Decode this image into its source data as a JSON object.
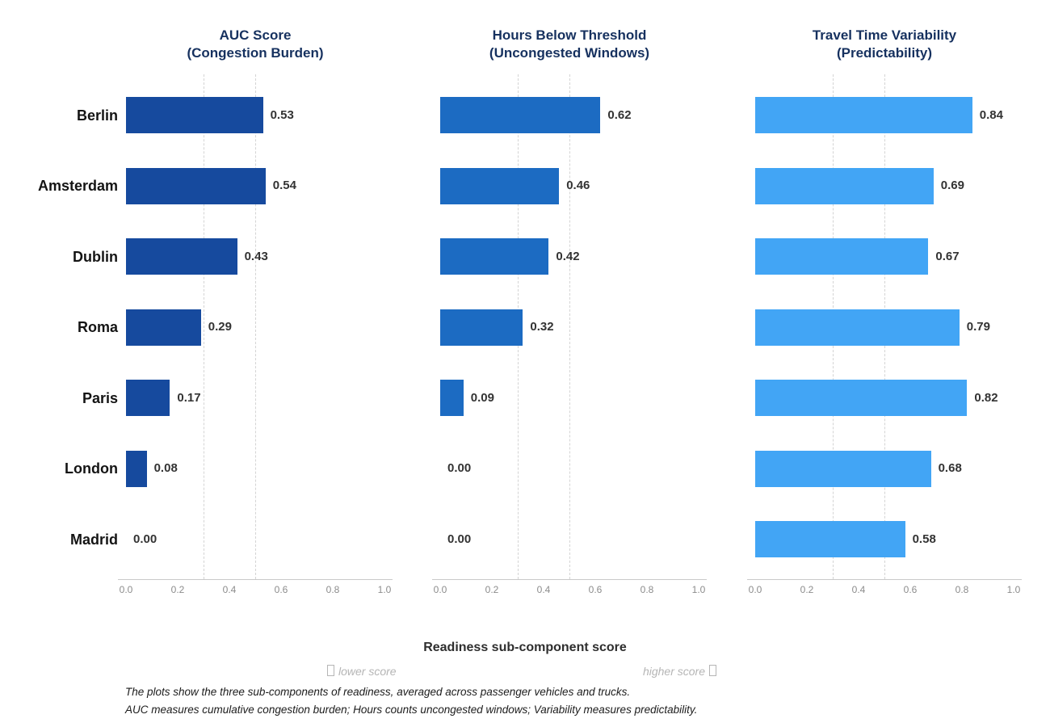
{
  "chart_data": {
    "type": "bar",
    "orientation": "horizontal",
    "categories": [
      "Berlin",
      "Amsterdam",
      "Dublin",
      "Roma",
      "Paris",
      "London",
      "Madrid"
    ],
    "panels": [
      {
        "title_line1": "AUC Score",
        "title_line2": "(Congestion Burden)",
        "color": "#164a9e",
        "values": [
          0.53,
          0.54,
          0.43,
          0.29,
          0.17,
          0.08,
          0.0
        ]
      },
      {
        "title_line1": "Hours Below Threshold",
        "title_line2": "(Uncongested Windows)",
        "color": "#1c6bc2",
        "values": [
          0.62,
          0.46,
          0.42,
          0.32,
          0.09,
          0.0,
          0.0
        ]
      },
      {
        "title_line1": "Travel Time Variability",
        "title_line2": "(Predictability)",
        "color": "#42a5f5",
        "values": [
          0.84,
          0.69,
          0.67,
          0.79,
          0.82,
          0.68,
          0.58
        ]
      }
    ],
    "x_ticks": [
      "0.0",
      "0.2",
      "0.4",
      "0.6",
      "0.8",
      "1.0"
    ],
    "xlim": [
      0,
      1
    ],
    "reference_lines": [
      0.3,
      0.5
    ],
    "grid": "vertical dashed reference lines at 0.3 and 0.5 only",
    "legend": "none",
    "xlabel": "Readiness sub-component score",
    "hint_left": "lower score",
    "hint_right": "higher score",
    "footnote_line1": "The plots show the three sub-components of readiness, averaged across passenger vehicles and trucks.",
    "footnote_line2": "AUC measures cumulative congestion burden; Hours counts uncongested windows; Variability measures predictability."
  },
  "colors": {
    "title_text": "#16315f",
    "city_label": "#141414",
    "value_label": "#333333",
    "tick_label": "#8c8c8c",
    "gridline": "#d4d4d4",
    "axis_line": "#c9c9c9",
    "hint_text": "#b5b5b5",
    "footnote_text": "#1c1c1c",
    "background": "#ffffff"
  }
}
